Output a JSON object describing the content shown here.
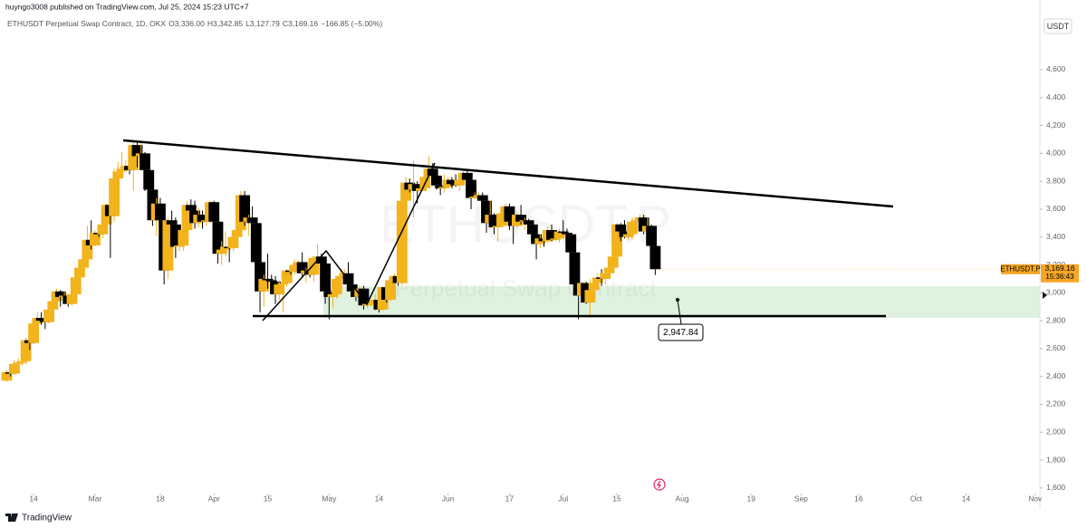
{
  "header": {
    "published": "huyngo3008 published on TradingView.com, Jul 25, 2024 15:23 UTC+7",
    "symbol": "ETHUSDT Perpetual Swap Contract, 1D, OKX",
    "o_key": "O",
    "o": "3,336.00",
    "h_key": "H",
    "h": "3,342.85",
    "l_key": "L",
    "l": "3,127.79",
    "c_key": "C",
    "c": "3,169.16",
    "change": "−166.85 (−5.00%)"
  },
  "watermark": {
    "symbol": "ETHUSDT.P",
    "description": "Perpetual Swap Contract"
  },
  "currency": "USDT",
  "price_label": {
    "symbol": "ETHUSDT.P",
    "price": "3,169.16",
    "countdown": "15:36:43"
  },
  "annotation": "2,947.84",
  "footer": "TradingView",
  "chart_data": {
    "type": "candlestick",
    "up_color": "#f2b31b",
    "down_color": "#000000",
    "grid": false,
    "xlim": [
      "2024-02-05",
      "2024-11-02"
    ],
    "ylim": [
      1560,
      4970
    ],
    "yticks": [
      {
        "value": 1600,
        "label": "1,600"
      },
      {
        "value": 1800,
        "label": "1,800"
      },
      {
        "value": 2000,
        "label": "2,000"
      },
      {
        "value": 2200,
        "label": "2,200"
      },
      {
        "value": 2400,
        "label": "2,400"
      },
      {
        "value": 2600,
        "label": "2,600"
      },
      {
        "value": 2800,
        "label": "2,800"
      },
      {
        "value": 3000,
        "label": "3,000"
      },
      {
        "value": 3200,
        "label": "3,200"
      },
      {
        "value": 3400,
        "label": "3,400"
      },
      {
        "value": 3600,
        "label": "3,600"
      },
      {
        "value": 3800,
        "label": "3,800"
      },
      {
        "value": 4000,
        "label": "4,000"
      },
      {
        "value": 4200,
        "label": "4,200"
      },
      {
        "value": 4400,
        "label": "4,400"
      },
      {
        "value": 4600,
        "label": "4,600"
      }
    ],
    "xticks": [
      {
        "value": "2024-02-14",
        "label": "14"
      },
      {
        "value": "2024-03-01",
        "label": "Mar"
      },
      {
        "value": "2024-03-18",
        "label": "18"
      },
      {
        "value": "2024-04-01",
        "label": "Apr"
      },
      {
        "value": "2024-04-15",
        "label": "15"
      },
      {
        "value": "2024-05-01",
        "label": "May"
      },
      {
        "value": "2024-05-14",
        "label": "14"
      },
      {
        "value": "2024-06-01",
        "label": "Jun"
      },
      {
        "value": "2024-06-17",
        "label": "17"
      },
      {
        "value": "2024-07-01",
        "label": "Jul"
      },
      {
        "value": "2024-07-15",
        "label": "15"
      },
      {
        "value": "2024-08-01",
        "label": "Aug"
      },
      {
        "value": "2024-08-19",
        "label": "19"
      },
      {
        "value": "2024-09-01",
        "label": "Sep"
      },
      {
        "value": "2024-09-16",
        "label": "16"
      },
      {
        "value": "2024-10-01",
        "label": "Oct"
      },
      {
        "value": "2024-10-14",
        "label": "14"
      },
      {
        "value": "2024-11-01",
        "label": "Nov"
      }
    ],
    "x": [
      "2024-02-07",
      "2024-02-08",
      "2024-02-09",
      "2024-02-10",
      "2024-02-11",
      "2024-02-12",
      "2024-02-13",
      "2024-02-14",
      "2024-02-15",
      "2024-02-16",
      "2024-02-17",
      "2024-02-18",
      "2024-02-19",
      "2024-02-20",
      "2024-02-21",
      "2024-02-22",
      "2024-02-23",
      "2024-02-24",
      "2024-02-25",
      "2024-02-26",
      "2024-02-27",
      "2024-02-28",
      "2024-02-29",
      "2024-03-01",
      "2024-03-02",
      "2024-03-03",
      "2024-03-04",
      "2024-03-05",
      "2024-03-06",
      "2024-03-07",
      "2024-03-08",
      "2024-03-09",
      "2024-03-10",
      "2024-03-11",
      "2024-03-12",
      "2024-03-13",
      "2024-03-14",
      "2024-03-15",
      "2024-03-16",
      "2024-03-17",
      "2024-03-18",
      "2024-03-19",
      "2024-03-20",
      "2024-03-21",
      "2024-03-22",
      "2024-03-23",
      "2024-03-24",
      "2024-03-25",
      "2024-03-26",
      "2024-03-27",
      "2024-03-28",
      "2024-03-29",
      "2024-03-30",
      "2024-03-31",
      "2024-04-01",
      "2024-04-02",
      "2024-04-03",
      "2024-04-04",
      "2024-04-05",
      "2024-04-06",
      "2024-04-07",
      "2024-04-08",
      "2024-04-09",
      "2024-04-10",
      "2024-04-11",
      "2024-04-12",
      "2024-04-13",
      "2024-04-14",
      "2024-04-15",
      "2024-04-16",
      "2024-04-17",
      "2024-04-18",
      "2024-04-19",
      "2024-04-20",
      "2024-04-21",
      "2024-04-22",
      "2024-04-23",
      "2024-04-24",
      "2024-04-25",
      "2024-04-26",
      "2024-04-27",
      "2024-04-28",
      "2024-04-29",
      "2024-04-30",
      "2024-05-01",
      "2024-05-02",
      "2024-05-03",
      "2024-05-04",
      "2024-05-05",
      "2024-05-06",
      "2024-05-07",
      "2024-05-08",
      "2024-05-09",
      "2024-05-10",
      "2024-05-11",
      "2024-05-12",
      "2024-05-13",
      "2024-05-14",
      "2024-05-15",
      "2024-05-16",
      "2024-05-17",
      "2024-05-18",
      "2024-05-19",
      "2024-05-20",
      "2024-05-21",
      "2024-05-22",
      "2024-05-23",
      "2024-05-24",
      "2024-05-25",
      "2024-05-26",
      "2024-05-27",
      "2024-05-28",
      "2024-05-29",
      "2024-05-30",
      "2024-05-31",
      "2024-06-01",
      "2024-06-02",
      "2024-06-03",
      "2024-06-04",
      "2024-06-05",
      "2024-06-06",
      "2024-06-07",
      "2024-06-08",
      "2024-06-09",
      "2024-06-10",
      "2024-06-11",
      "2024-06-12",
      "2024-06-13",
      "2024-06-14",
      "2024-06-15",
      "2024-06-16",
      "2024-06-17",
      "2024-06-18",
      "2024-06-19",
      "2024-06-20",
      "2024-06-21",
      "2024-06-22",
      "2024-06-23",
      "2024-06-24",
      "2024-06-25",
      "2024-06-26",
      "2024-06-27",
      "2024-06-28",
      "2024-06-29",
      "2024-06-30",
      "2024-07-01",
      "2024-07-02",
      "2024-07-03",
      "2024-07-04",
      "2024-07-05",
      "2024-07-06",
      "2024-07-07",
      "2024-07-08",
      "2024-07-09",
      "2024-07-10",
      "2024-07-11",
      "2024-07-12",
      "2024-07-13",
      "2024-07-14",
      "2024-07-15",
      "2024-07-16",
      "2024-07-17",
      "2024-07-18",
      "2024-07-19",
      "2024-07-20",
      "2024-07-21",
      "2024-07-22",
      "2024-07-23",
      "2024-07-24",
      "2024-07-25"
    ],
    "ohlc": [
      [
        2370,
        2450,
        2360,
        2430
      ],
      [
        2430,
        2460,
        2400,
        2420
      ],
      [
        2420,
        2520,
        2410,
        2490
      ],
      [
        2490,
        2530,
        2470,
        2500
      ],
      [
        2500,
        2540,
        2480,
        2510
      ],
      [
        2510,
        2680,
        2490,
        2660
      ],
      [
        2660,
        2700,
        2590,
        2640
      ],
      [
        2640,
        2790,
        2630,
        2780
      ],
      [
        2780,
        2860,
        2760,
        2820
      ],
      [
        2820,
        2860,
        2770,
        2800
      ],
      [
        2800,
        2830,
        2740,
        2790
      ],
      [
        2790,
        2890,
        2780,
        2880
      ],
      [
        2880,
        2950,
        2870,
        2940
      ],
      [
        2940,
        3030,
        2880,
        3010
      ],
      [
        3010,
        3020,
        2900,
        2970
      ],
      [
        2970,
        3010,
        2930,
        2980
      ],
      [
        2980,
        2990,
        2900,
        2920
      ],
      [
        2920,
        3000,
        2910,
        2990
      ],
      [
        2990,
        3120,
        2980,
        3110
      ],
      [
        3110,
        3190,
        3070,
        3180
      ],
      [
        3180,
        3290,
        3170,
        3240
      ],
      [
        3240,
        3480,
        3200,
        3380
      ],
      [
        3380,
        3520,
        3310,
        3340
      ],
      [
        3340,
        3450,
        3330,
        3430
      ],
      [
        3430,
        3450,
        3400,
        3420
      ],
      [
        3420,
        3500,
        3390,
        3490
      ],
      [
        3490,
        3640,
        3460,
        3630
      ],
      [
        3630,
        3820,
        3250,
        3550
      ],
      [
        3550,
        3890,
        3510,
        3820
      ],
      [
        3820,
        3940,
        3760,
        3870
      ],
      [
        3870,
        4010,
        3830,
        3890
      ],
      [
        3890,
        3950,
        3880,
        3910
      ],
      [
        3910,
        3960,
        3850,
        3880
      ],
      [
        3880,
        4090,
        3730,
        4060
      ],
      [
        4060,
        4090,
        3900,
        3980
      ],
      [
        3980,
        4080,
        3940,
        4000
      ],
      [
        4000,
        4010,
        3730,
        3880
      ],
      [
        3880,
        3940,
        3580,
        3740
      ],
      [
        3740,
        3780,
        3480,
        3520
      ],
      [
        3520,
        3680,
        3410,
        3640
      ],
      [
        3640,
        3680,
        3450,
        3520
      ],
      [
        3520,
        3550,
        3060,
        3160
      ],
      [
        3160,
        3540,
        3100,
        3520
      ],
      [
        3520,
        3590,
        3420,
        3490
      ],
      [
        3490,
        3540,
        3250,
        3330
      ],
      [
        3330,
        3410,
        3300,
        3340
      ],
      [
        3340,
        3460,
        3300,
        3450
      ],
      [
        3450,
        3660,
        3420,
        3630
      ],
      [
        3630,
        3670,
        3560,
        3590
      ],
      [
        3590,
        3660,
        3460,
        3500
      ],
      [
        3500,
        3610,
        3470,
        3560
      ],
      [
        3560,
        3590,
        3460,
        3510
      ],
      [
        3510,
        3560,
        3480,
        3520
      ],
      [
        3520,
        3660,
        3500,
        3650
      ],
      [
        3650,
        3660,
        3420,
        3510
      ],
      [
        3510,
        3520,
        3210,
        3280
      ],
      [
        3280,
        3370,
        3200,
        3310
      ],
      [
        3310,
        3440,
        3260,
        3330
      ],
      [
        3330,
        3340,
        3220,
        3320
      ],
      [
        3320,
        3410,
        3300,
        3400
      ],
      [
        3400,
        3460,
        3380,
        3450
      ],
      [
        3450,
        3730,
        3440,
        3700
      ],
      [
        3700,
        3730,
        3480,
        3510
      ],
      [
        3510,
        3560,
        3410,
        3540
      ],
      [
        3540,
        3620,
        3480,
        3500
      ],
      [
        3500,
        3540,
        3150,
        3220
      ],
      [
        3220,
        3290,
        2860,
        3010
      ],
      [
        3010,
        3130,
        2900,
        3100
      ],
      [
        3100,
        3280,
        3030,
        3090
      ],
      [
        3090,
        3130,
        2990,
        3080
      ],
      [
        3080,
        3120,
        2920,
        2990
      ],
      [
        2990,
        3090,
        2950,
        3060
      ],
      [
        3060,
        3130,
        2860,
        3070
      ],
      [
        3070,
        3170,
        3040,
        3160
      ],
      [
        3160,
        3200,
        3130,
        3150
      ],
      [
        3150,
        3240,
        3130,
        3200
      ],
      [
        3200,
        3230,
        3170,
        3220
      ],
      [
        3220,
        3290,
        3110,
        3140
      ],
      [
        3140,
        3180,
        3070,
        3160
      ],
      [
        3160,
        3170,
        3110,
        3130
      ],
      [
        3130,
        3260,
        3080,
        3250
      ],
      [
        3250,
        3350,
        3240,
        3260
      ],
      [
        3260,
        3280,
        3130,
        3210
      ],
      [
        3210,
        3250,
        2920,
        3010
      ],
      [
        3010,
        3020,
        2810,
        2970
      ],
      [
        2970,
        3010,
        2890,
        2990
      ],
      [
        2990,
        3120,
        2960,
        3100
      ],
      [
        3100,
        3170,
        3080,
        3120
      ],
      [
        3120,
        3170,
        3080,
        3140
      ],
      [
        3140,
        3220,
        3040,
        3060
      ],
      [
        3060,
        3130,
        3000,
        3010
      ],
      [
        3010,
        3020,
        2940,
        2970
      ],
      [
        2970,
        3050,
        2950,
        3030
      ],
      [
        3030,
        3050,
        2880,
        2910
      ],
      [
        2910,
        2940,
        2890,
        2920
      ],
      [
        2920,
        2950,
        2900,
        2930
      ],
      [
        2930,
        2990,
        2870,
        2950
      ],
      [
        2950,
        2960,
        2860,
        2880
      ],
      [
        2880,
        3040,
        2870,
        3040
      ],
      [
        3040,
        3050,
        2930,
        2950
      ],
      [
        2950,
        3110,
        2940,
        3090
      ],
      [
        3090,
        3140,
        3080,
        3120
      ],
      [
        3120,
        3140,
        3050,
        3070
      ],
      [
        3070,
        3680,
        3050,
        3660
      ],
      [
        3660,
        3830,
        3620,
        3790
      ],
      [
        3790,
        3820,
        3720,
        3740
      ],
      [
        3740,
        3950,
        3540,
        3780
      ],
      [
        3780,
        3800,
        3640,
        3730
      ],
      [
        3730,
        3780,
        3720,
        3750
      ],
      [
        3750,
        3860,
        3740,
        3830
      ],
      [
        3830,
        3980,
        3830,
        3890
      ],
      [
        3890,
        3930,
        3770,
        3840
      ],
      [
        3840,
        3880,
        3740,
        3770
      ],
      [
        3770,
        3830,
        3700,
        3750
      ],
      [
        3750,
        3850,
        3720,
        3760
      ],
      [
        3760,
        3830,
        3750,
        3810
      ],
      [
        3810,
        3830,
        3750,
        3780
      ],
      [
        3780,
        3850,
        3760,
        3770
      ],
      [
        3770,
        3830,
        3730,
        3810
      ],
      [
        3810,
        3890,
        3790,
        3860
      ],
      [
        3860,
        3880,
        3750,
        3810
      ],
      [
        3810,
        3840,
        3600,
        3680
      ],
      [
        3680,
        3720,
        3670,
        3690
      ],
      [
        3690,
        3720,
        3670,
        3700
      ],
      [
        3700,
        3720,
        3620,
        3660
      ],
      [
        3660,
        3670,
        3430,
        3500
      ],
      [
        3500,
        3660,
        3460,
        3560
      ],
      [
        3560,
        3570,
        3420,
        3470
      ],
      [
        3470,
        3530,
        3370,
        3480
      ],
      [
        3480,
        3590,
        3470,
        3570
      ],
      [
        3570,
        3640,
        3550,
        3620
      ],
      [
        3620,
        3640,
        3450,
        3510
      ],
      [
        3510,
        3520,
        3350,
        3480
      ],
      [
        3480,
        3580,
        3470,
        3560
      ],
      [
        3560,
        3630,
        3490,
        3510
      ],
      [
        3510,
        3540,
        3450,
        3520
      ],
      [
        3520,
        3530,
        3480,
        3490
      ],
      [
        3490,
        3510,
        3400,
        3420
      ],
      [
        3420,
        3430,
        3240,
        3350
      ],
      [
        3350,
        3420,
        3320,
        3390
      ],
      [
        3390,
        3400,
        3330,
        3370
      ],
      [
        3370,
        3480,
        3360,
        3450
      ],
      [
        3450,
        3490,
        3370,
        3380
      ],
      [
        3380,
        3410,
        3370,
        3390
      ],
      [
        3390,
        3460,
        3360,
        3440
      ],
      [
        3440,
        3520,
        3420,
        3430
      ],
      [
        3430,
        3460,
        3400,
        3420
      ],
      [
        3420,
        3430,
        3250,
        3290
      ],
      [
        3290,
        3310,
        3050,
        3060
      ],
      [
        3060,
        3110,
        2810,
        2980
      ],
      [
        2980,
        3080,
        2960,
        3070
      ],
      [
        3070,
        3080,
        2920,
        2930
      ],
      [
        2930,
        3100,
        2820,
        3020
      ],
      [
        3020,
        3100,
        3010,
        3070
      ],
      [
        3070,
        3140,
        3040,
        3110
      ],
      [
        3110,
        3170,
        3050,
        3100
      ],
      [
        3100,
        3150,
        3060,
        3140
      ],
      [
        3140,
        3200,
        3130,
        3180
      ],
      [
        3180,
        3280,
        3170,
        3260
      ],
      [
        3260,
        3500,
        3240,
        3490
      ],
      [
        3490,
        3500,
        3370,
        3440
      ],
      [
        3440,
        3520,
        3390,
        3400
      ],
      [
        3400,
        3490,
        3380,
        3420
      ],
      [
        3420,
        3540,
        3380,
        3510
      ],
      [
        3510,
        3540,
        3490,
        3520
      ],
      [
        3520,
        3560,
        3460,
        3540
      ],
      [
        3540,
        3560,
        3420,
        3440
      ],
      [
        3440,
        3540,
        3400,
        3480
      ],
      [
        3480,
        3490,
        3320,
        3336
      ],
      [
        3336.0,
        3342.85,
        3127.79,
        3169.16
      ]
    ]
  }
}
